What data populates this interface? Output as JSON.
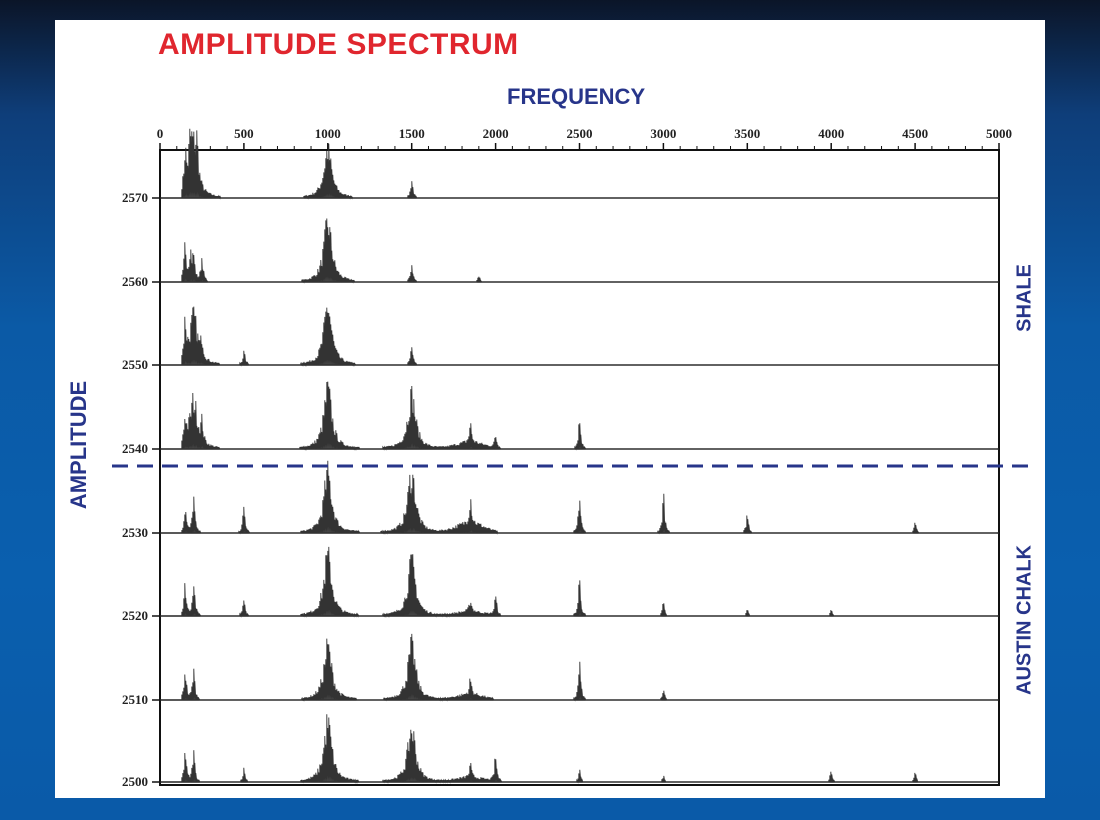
{
  "chart_data": {
    "type": "line",
    "title": "AMPLITUDE SPECTRUM",
    "xlabel": "FREQUENCY",
    "ylabel": "AMPLITUDE",
    "xlim": [
      0,
      5000
    ],
    "x_ticks": [
      "0",
      "500",
      "1000",
      "1500",
      "2000",
      "2500",
      "3000",
      "3500",
      "4000",
      "4500",
      "5000"
    ],
    "depth_ticks": [
      "2570",
      "2560",
      "2550",
      "2540",
      "2530",
      "2520",
      "2510",
      "2500"
    ],
    "zone_labels": [
      "SHALE",
      "AUSTIN CHALK"
    ],
    "boundary_style": "dashed",
    "traces": [
      {
        "name": "2570",
        "peaks": [
          [
            150,
            0.6
          ],
          [
            180,
            0.7
          ],
          [
            200,
            0.8
          ],
          [
            220,
            0.5
          ],
          [
            1000,
            0.8
          ],
          [
            1500,
            0.3
          ]
        ]
      },
      {
        "name": "2560",
        "peaks": [
          [
            150,
            0.6
          ],
          [
            180,
            0.5
          ],
          [
            200,
            0.4
          ],
          [
            250,
            0.4
          ],
          [
            1000,
            1.0
          ],
          [
            1500,
            0.3
          ],
          [
            1900,
            0.1
          ]
        ]
      },
      {
        "name": "2550",
        "peaks": [
          [
            150,
            0.6
          ],
          [
            200,
            0.8
          ],
          [
            250,
            0.3
          ],
          [
            500,
            0.2
          ],
          [
            1000,
            1.0
          ],
          [
            1500,
            0.3
          ]
        ]
      },
      {
        "name": "2540",
        "peaks": [
          [
            150,
            0.4
          ],
          [
            200,
            0.8
          ],
          [
            250,
            0.3
          ],
          [
            1000,
            1.0
          ],
          [
            1500,
            0.9
          ],
          [
            1850,
            0.3
          ],
          [
            2000,
            0.2
          ],
          [
            2500,
            0.5
          ]
        ]
      },
      {
        "name": "2530",
        "peaks": [
          [
            150,
            0.4
          ],
          [
            200,
            0.6
          ],
          [
            500,
            0.4
          ],
          [
            1000,
            1.0
          ],
          [
            1500,
            1.0
          ],
          [
            1850,
            0.45
          ],
          [
            2500,
            0.6
          ],
          [
            3000,
            0.6
          ],
          [
            3500,
            0.3
          ],
          [
            4500,
            0.2
          ]
        ]
      },
      {
        "name": "2520",
        "peaks": [
          [
            150,
            0.5
          ],
          [
            200,
            0.6
          ],
          [
            500,
            0.3
          ],
          [
            1000,
            1.0
          ],
          [
            1500,
            0.9
          ],
          [
            1850,
            0.2
          ],
          [
            2000,
            0.3
          ],
          [
            2500,
            0.6
          ],
          [
            3000,
            0.2
          ],
          [
            3500,
            0.1
          ],
          [
            4000,
            0.1
          ]
        ]
      },
      {
        "name": "2510",
        "peaks": [
          [
            150,
            0.5
          ],
          [
            200,
            0.5
          ],
          [
            1000,
            0.9
          ],
          [
            1500,
            0.9
          ],
          [
            1850,
            0.25
          ],
          [
            2500,
            0.6
          ],
          [
            3000,
            0.15
          ]
        ]
      },
      {
        "name": "2500",
        "peaks": [
          [
            150,
            0.5
          ],
          [
            200,
            0.5
          ],
          [
            500,
            0.2
          ],
          [
            1000,
            1.0
          ],
          [
            1500,
            0.9
          ],
          [
            1850,
            0.2
          ],
          [
            2000,
            0.4
          ],
          [
            2500,
            0.2
          ],
          [
            3000,
            0.1
          ],
          [
            4000,
            0.2
          ],
          [
            4500,
            0.15
          ]
        ]
      }
    ]
  },
  "colors": {
    "title": "#e0262e",
    "labels": "#27358a",
    "trace": "#333333",
    "boundary": "#27358a"
  }
}
